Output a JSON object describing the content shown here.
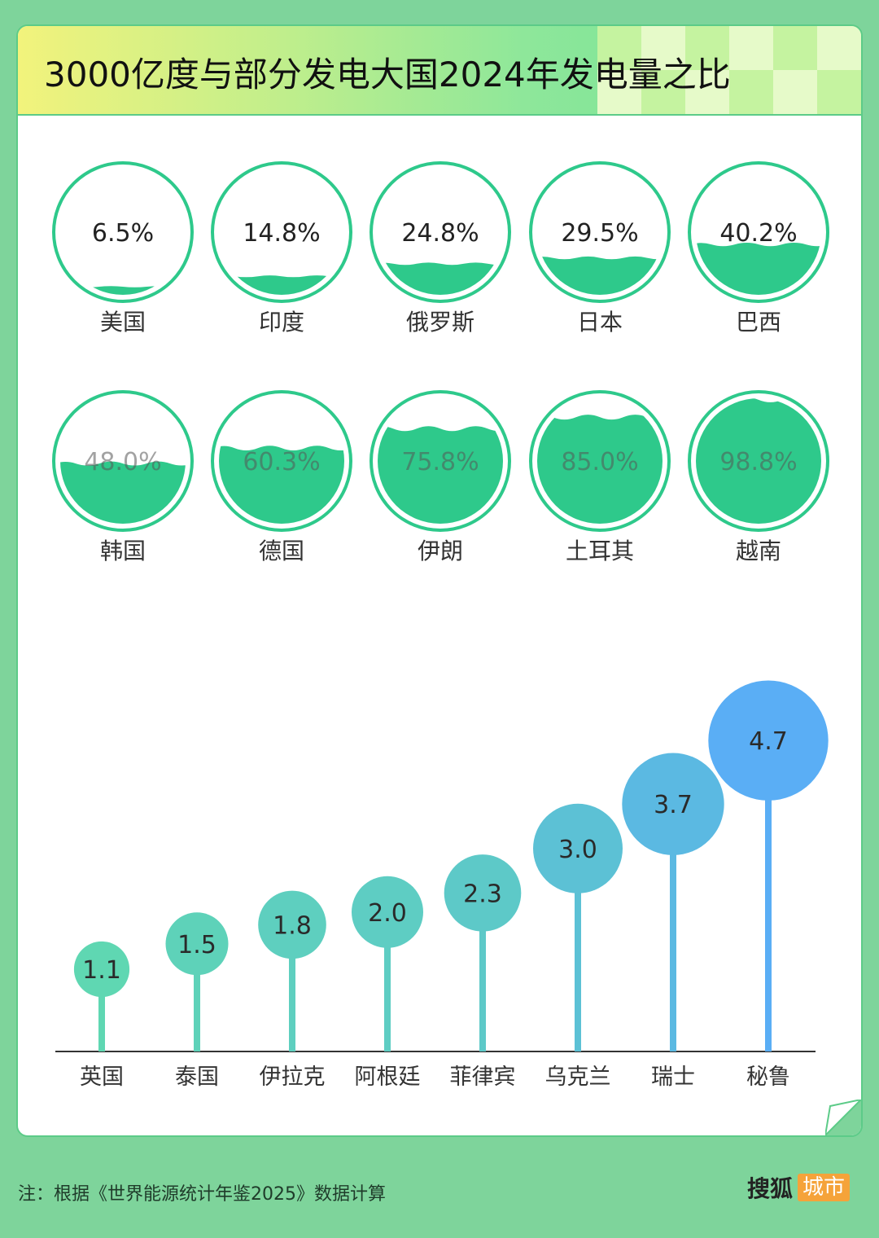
{
  "title": "3000亿度与部分发电大国2024年发电量之比",
  "footer": {
    "note": "注：根据《世界能源统计年鉴2025》数据计算",
    "brand_main": "搜狐",
    "brand_sub": "城市"
  },
  "colors": {
    "background": "#7ed49b",
    "water": "#2ec98b",
    "ring": "#2ec98b",
    "lollipop_start": "#5fd7b2",
    "lollipop_end": "#5aaef5"
  },
  "chart_data": [
    {
      "type": "gauge",
      "unit": "%",
      "items": [
        {
          "label": "美国",
          "value": 6.5,
          "value_text": "6.5%"
        },
        {
          "label": "印度",
          "value": 14.8,
          "value_text": "14.8%"
        },
        {
          "label": "俄罗斯",
          "value": 24.8,
          "value_text": "24.8%"
        },
        {
          "label": "日本",
          "value": 29.5,
          "value_text": "29.5%"
        },
        {
          "label": "巴西",
          "value": 40.2,
          "value_text": "40.2%"
        },
        {
          "label": "韩国",
          "value": 48.0,
          "value_text": "48.0%"
        },
        {
          "label": "德国",
          "value": 60.3,
          "value_text": "60.3%"
        },
        {
          "label": "伊朗",
          "value": 75.8,
          "value_text": "75.8%"
        },
        {
          "label": "土耳其",
          "value": 85.0,
          "value_text": "85.0%"
        },
        {
          "label": "越南",
          "value": 98.8,
          "value_text": "98.8%"
        }
      ]
    },
    {
      "type": "lollipop",
      "categories": [
        "英国",
        "泰国",
        "伊拉克",
        "阿根廷",
        "菲律宾",
        "乌克兰",
        "瑞士",
        "秘鲁"
      ],
      "values": [
        1.1,
        1.5,
        1.8,
        2.0,
        2.3,
        3.0,
        3.7,
        4.7
      ],
      "value_labels": [
        "1.1",
        "1.5",
        "1.8",
        "2.0",
        "2.3",
        "3.0",
        "3.7",
        "4.7"
      ]
    }
  ]
}
